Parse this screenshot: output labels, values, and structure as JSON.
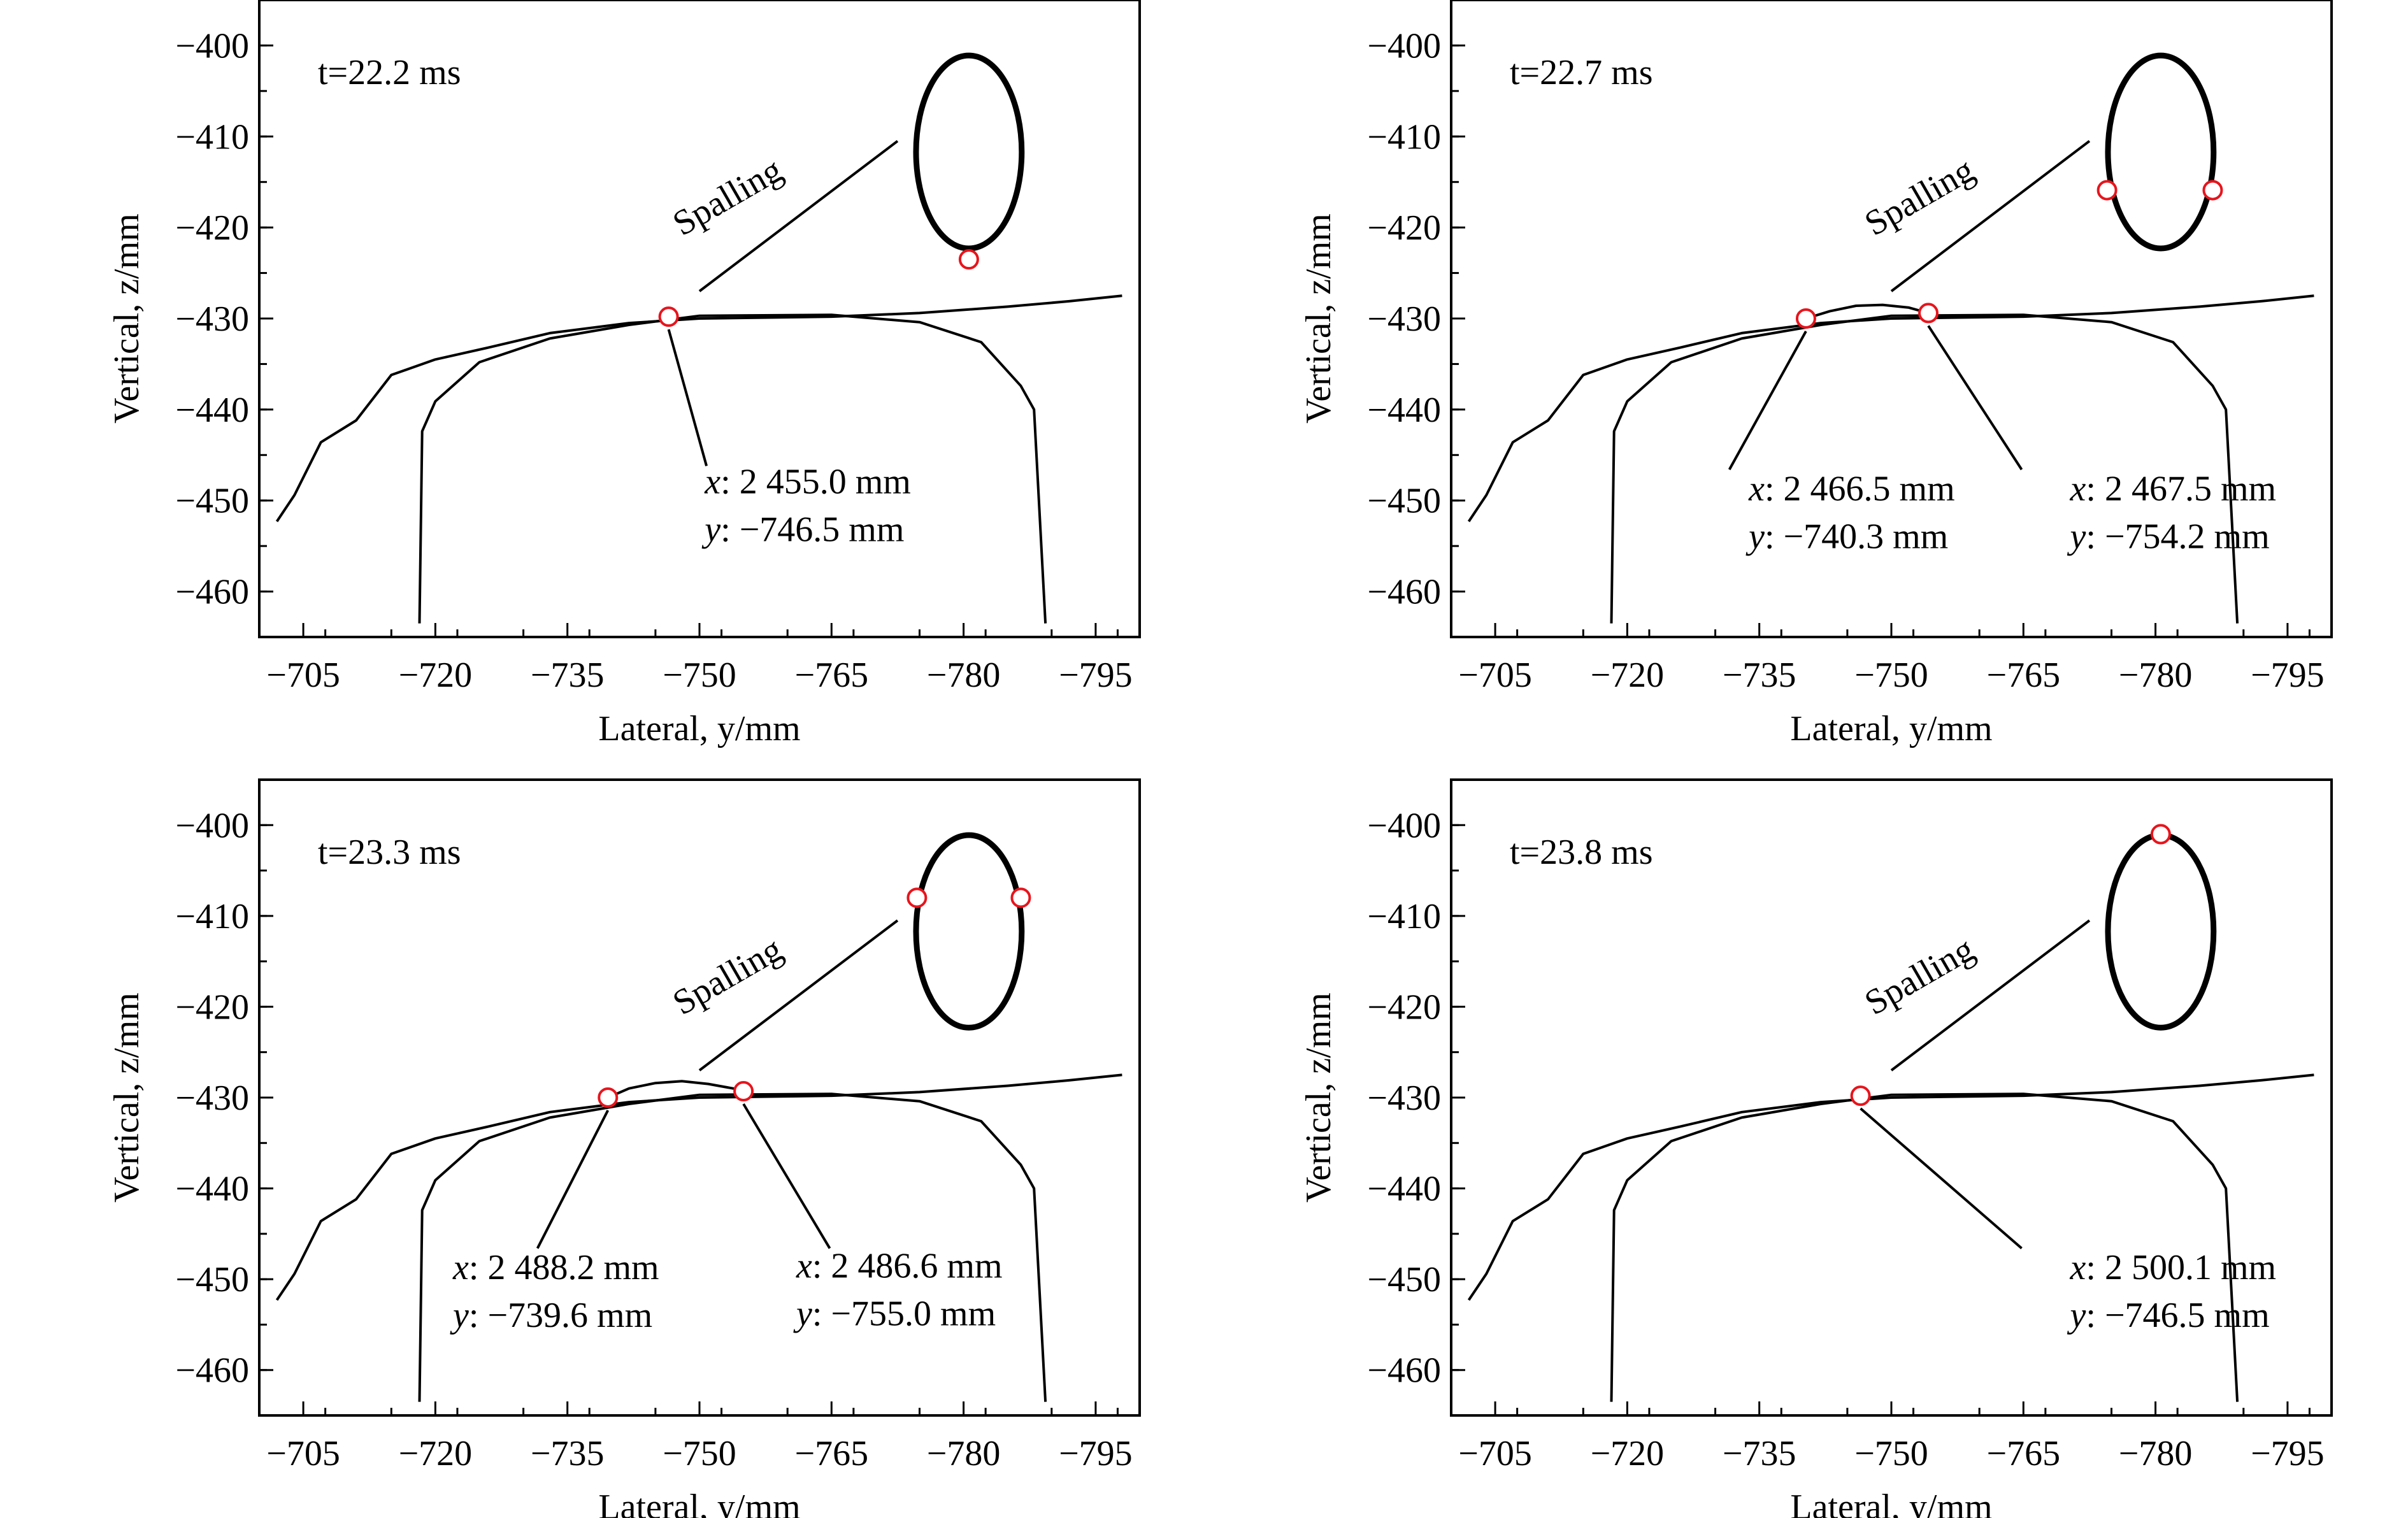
{
  "chart_data": [
    {
      "type": "line",
      "time_label": "t=22.2 ms",
      "xlabel": "Lateral, y/mm",
      "ylabel": "Vertical, z/mm",
      "xlim": [
        -700,
        -800
      ],
      "ylim": [
        -465,
        -395
      ],
      "xticks": [
        -705,
        -720,
        -735,
        -750,
        -765,
        -780,
        -795
      ],
      "yticks": [
        -400,
        -410,
        -420,
        -430,
        -440,
        -450,
        -460
      ],
      "wheel_profile": [
        [
          -702,
          -452.3
        ],
        [
          -704,
          -449.4
        ],
        [
          -707,
          -443.6
        ],
        [
          -711,
          -441.2
        ],
        [
          -715,
          -436.2
        ],
        [
          -720,
          -434.5
        ],
        [
          -726,
          -433.2
        ],
        [
          -733,
          -431.6
        ],
        [
          -742,
          -430.5
        ],
        [
          -750,
          -430.0
        ],
        [
          -765,
          -429.8
        ],
        [
          -775,
          -429.4
        ],
        [
          -785,
          -428.7
        ],
        [
          -792,
          -428.1
        ],
        [
          -798,
          -427.5
        ]
      ],
      "rail_profile": [
        [
          -718.2,
          -463.5
        ],
        [
          -718.5,
          -442.4
        ],
        [
          -720,
          -439.1
        ],
        [
          -725,
          -434.8
        ],
        [
          -733,
          -432.2
        ],
        [
          -742,
          -430.7
        ],
        [
          -750,
          -429.7
        ],
        [
          -765,
          -429.6
        ],
        [
          -775,
          -430.4
        ],
        [
          -782,
          -432.6
        ],
        [
          -786.5,
          -437.4
        ],
        [
          -788,
          -440.0
        ],
        [
          -789.3,
          -463.5
        ]
      ],
      "bump": [],
      "contact_points": [
        {
          "y": -746.5,
          "z": -429.8
        }
      ],
      "annotations": [
        {
          "lines": [
            {
              "var": "x",
              "text": ": 2 455.0 mm"
            },
            {
              "var": "y",
              "text": ": −746.5 mm"
            }
          ],
          "point": [
            -746.5,
            -429.8
          ],
          "line_end": [
            -750.8,
            -446.2
          ],
          "text_at": [
            -750.6,
            -449.2
          ]
        }
      ],
      "spalling_label": "Spalling",
      "ellipse": {
        "cy": [
          -780.6,
          -411.7
        ],
        "rx": 6.0,
        "ry": 10.6
      },
      "ellipse_points": [
        {
          "y": -780.6,
          "z": -423.5
        }
      ]
    },
    {
      "type": "line",
      "time_label": "t=22.7 ms",
      "xlabel": "Lateral, y/mm",
      "ylabel": "Vertical, z/mm",
      "xlim": [
        -700,
        -800
      ],
      "ylim": [
        -465,
        -395
      ],
      "xticks": [
        -705,
        -720,
        -735,
        -750,
        -765,
        -780,
        -795
      ],
      "yticks": [
        -400,
        -410,
        -420,
        -430,
        -440,
        -450,
        -460
      ],
      "wheel_profile": [
        [
          -702,
          -452.3
        ],
        [
          -704,
          -449.4
        ],
        [
          -707,
          -443.6
        ],
        [
          -711,
          -441.2
        ],
        [
          -715,
          -436.2
        ],
        [
          -720,
          -434.5
        ],
        [
          -726,
          -433.2
        ],
        [
          -733,
          -431.6
        ],
        [
          -742,
          -430.5
        ],
        [
          -750,
          -430.0
        ],
        [
          -765,
          -429.8
        ],
        [
          -775,
          -429.4
        ],
        [
          -785,
          -428.7
        ],
        [
          -792,
          -428.1
        ],
        [
          -798,
          -427.5
        ]
      ],
      "rail_profile": [
        [
          -718.2,
          -463.5
        ],
        [
          -718.5,
          -442.4
        ],
        [
          -720,
          -439.1
        ],
        [
          -725,
          -434.8
        ],
        [
          -733,
          -432.2
        ],
        [
          -742,
          -430.7
        ],
        [
          -750,
          -429.7
        ],
        [
          -765,
          -429.6
        ],
        [
          -775,
          -430.4
        ],
        [
          -782,
          -432.6
        ],
        [
          -786.5,
          -437.4
        ],
        [
          -788,
          -440.0
        ],
        [
          -789.3,
          -463.5
        ]
      ],
      "bump": [
        [
          -740.3,
          -430.0
        ],
        [
          -743,
          -429.2
        ],
        [
          -746,
          -428.6
        ],
        [
          -749,
          -428.5
        ],
        [
          -752,
          -428.8
        ],
        [
          -754.2,
          -429.4
        ]
      ],
      "contact_points": [
        {
          "y": -740.3,
          "z": -430.0
        },
        {
          "y": -754.2,
          "z": -429.4
        }
      ],
      "annotations": [
        {
          "lines": [
            {
              "var": "x",
              "text": ": 2 466.5 mm"
            },
            {
              "var": "y",
              "text": ": −740.3 mm"
            }
          ],
          "point": [
            -740.3,
            -430.0
          ],
          "line_end": [
            -731.6,
            -446.6
          ],
          "text_at": [
            -733.8,
            -450.0
          ]
        },
        {
          "lines": [
            {
              "var": "x",
              "text": ": 2 467.5 mm"
            },
            {
              "var": "y",
              "text": ": −754.2 mm"
            }
          ],
          "point": [
            -754.2,
            -429.4
          ],
          "line_end": [
            -764.8,
            -446.6
          ],
          "text_at": [
            -770.3,
            -450.0
          ]
        }
      ],
      "spalling_label": "Spalling",
      "ellipse": {
        "cy": [
          -780.6,
          -411.7
        ],
        "rx": 6.0,
        "ry": 10.6
      },
      "ellipse_points": [
        {
          "y": -774.5,
          "z": -415.9
        },
        {
          "y": -786.5,
          "z": -415.9
        }
      ]
    },
    {
      "type": "line",
      "time_label": "t=23.3 ms",
      "xlabel": "Lateral, y/mm",
      "ylabel": "Vertical, z/mm",
      "xlim": [
        -700,
        -800
      ],
      "ylim": [
        -465,
        -395
      ],
      "xticks": [
        -705,
        -720,
        -735,
        -750,
        -765,
        -780,
        -795
      ],
      "yticks": [
        -400,
        -410,
        -420,
        -430,
        -440,
        -450,
        -460
      ],
      "wheel_profile": [
        [
          -702,
          -452.3
        ],
        [
          -704,
          -449.4
        ],
        [
          -707,
          -443.6
        ],
        [
          -711,
          -441.2
        ],
        [
          -715,
          -436.2
        ],
        [
          -720,
          -434.5
        ],
        [
          -726,
          -433.2
        ],
        [
          -733,
          -431.6
        ],
        [
          -742,
          -430.5
        ],
        [
          -750,
          -430.0
        ],
        [
          -765,
          -429.8
        ],
        [
          -775,
          -429.4
        ],
        [
          -785,
          -428.7
        ],
        [
          -792,
          -428.1
        ],
        [
          -798,
          -427.5
        ]
      ],
      "rail_profile": [
        [
          -718.2,
          -463.5
        ],
        [
          -718.5,
          -442.4
        ],
        [
          -720,
          -439.1
        ],
        [
          -725,
          -434.8
        ],
        [
          -733,
          -432.2
        ],
        [
          -742,
          -430.7
        ],
        [
          -750,
          -429.7
        ],
        [
          -765,
          -429.6
        ],
        [
          -775,
          -430.4
        ],
        [
          -782,
          -432.6
        ],
        [
          -786.5,
          -437.4
        ],
        [
          -788,
          -440.0
        ],
        [
          -789.3,
          -463.5
        ]
      ],
      "bump": [
        [
          -739.6,
          -430.0
        ],
        [
          -742,
          -429.0
        ],
        [
          -745,
          -428.4
        ],
        [
          -748,
          -428.2
        ],
        [
          -751,
          -428.5
        ],
        [
          -755.0,
          -429.2
        ]
      ],
      "contact_points": [
        {
          "y": -739.6,
          "z": -430.0
        },
        {
          "y": -755.0,
          "z": -429.3
        }
      ],
      "annotations": [
        {
          "lines": [
            {
              "var": "x",
              "text": ": 2 488.2 mm"
            },
            {
              "var": "y",
              "text": ": −739.6 mm"
            }
          ],
          "point": [
            -739.6,
            -430.0
          ],
          "line_end": [
            -731.6,
            -446.6
          ],
          "text_at": [
            -722.0,
            -450.0
          ]
        },
        {
          "lines": [
            {
              "var": "x",
              "text": ": 2 486.6 mm"
            },
            {
              "var": "y",
              "text": ": −755.0 mm"
            }
          ],
          "point": [
            -755.0,
            -429.3
          ],
          "line_end": [
            -764.8,
            -446.6
          ],
          "text_at": [
            -761.0,
            -449.8
          ]
        }
      ],
      "spalling_label": "Spalling",
      "ellipse": {
        "cy": [
          -780.6,
          -411.7
        ],
        "rx": 6.0,
        "ry": 10.6
      },
      "ellipse_points": [
        {
          "y": -774.7,
          "z": -408.0
        },
        {
          "y": -786.5,
          "z": -408.0
        }
      ]
    },
    {
      "type": "line",
      "time_label": "t=23.8 ms",
      "xlabel": "Lateral, y/mm",
      "ylabel": "Vertical, z/mm",
      "xlim": [
        -700,
        -800
      ],
      "ylim": [
        -465,
        -395
      ],
      "xticks": [
        -705,
        -720,
        -735,
        -750,
        -765,
        -780,
        -795
      ],
      "yticks": [
        -400,
        -410,
        -420,
        -430,
        -440,
        -450,
        -460
      ],
      "wheel_profile": [
        [
          -702,
          -452.3
        ],
        [
          -704,
          -449.4
        ],
        [
          -707,
          -443.6
        ],
        [
          -711,
          -441.2
        ],
        [
          -715,
          -436.2
        ],
        [
          -720,
          -434.5
        ],
        [
          -726,
          -433.2
        ],
        [
          -733,
          -431.6
        ],
        [
          -742,
          -430.5
        ],
        [
          -750,
          -430.0
        ],
        [
          -765,
          -429.8
        ],
        [
          -775,
          -429.4
        ],
        [
          -785,
          -428.7
        ],
        [
          -792,
          -428.1
        ],
        [
          -798,
          -427.5
        ]
      ],
      "rail_profile": [
        [
          -718.2,
          -463.5
        ],
        [
          -718.5,
          -442.4
        ],
        [
          -720,
          -439.1
        ],
        [
          -725,
          -434.8
        ],
        [
          -733,
          -432.2
        ],
        [
          -742,
          -430.7
        ],
        [
          -750,
          -429.7
        ],
        [
          -765,
          -429.6
        ],
        [
          -775,
          -430.4
        ],
        [
          -782,
          -432.6
        ],
        [
          -786.5,
          -437.4
        ],
        [
          -788,
          -440.0
        ],
        [
          -789.3,
          -463.5
        ]
      ],
      "bump": [],
      "contact_points": [
        {
          "y": -746.5,
          "z": -429.8
        }
      ],
      "annotations": [
        {
          "lines": [
            {
              "var": "x",
              "text": ": 2 500.1 mm"
            },
            {
              "var": "y",
              "text": ": −746.5 mm"
            }
          ],
          "point": [
            -746.5,
            -429.8
          ],
          "line_end": [
            -764.8,
            -446.6
          ],
          "text_at": [
            -770.3,
            -450.0
          ]
        }
      ],
      "spalling_label": "Spalling",
      "ellipse": {
        "cy": [
          -780.6,
          -411.7
        ],
        "rx": 6.0,
        "ry": 10.6
      },
      "ellipse_points": [
        {
          "y": -780.6,
          "z": -401.0
        }
      ]
    }
  ],
  "colors": {
    "axis": "#000000",
    "line": "#000000",
    "marker": "#e8141c"
  }
}
